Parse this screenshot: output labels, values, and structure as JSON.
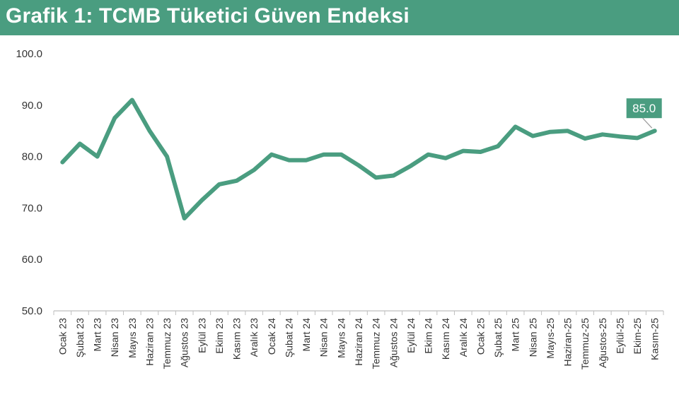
{
  "header": {
    "title": "Grafik 1: TCMB Tüketici Güven Endeksi"
  },
  "colors": {
    "accent": "#4a9d80",
    "line": "#4a9d80",
    "axis": "#bfbfbf"
  },
  "chart_data": {
    "type": "line",
    "title": "",
    "xlabel": "",
    "ylabel": "",
    "ylim": [
      50,
      100
    ],
    "yticks": [
      "100.0",
      "90.0",
      "80.0",
      "70.0",
      "60.0",
      "50.0"
    ],
    "grid": false,
    "categories": [
      "Ocak 23",
      "Şubat 23",
      "Mart 23",
      "Nisan 23",
      "Mayıs 23",
      "Haziran 23",
      "Temmuz 23",
      "Ağustos 23",
      "Eylül 23",
      "Ekim 23",
      "Kasım 23",
      "Aralık 23",
      "Ocak 24",
      "Şubat 24",
      "Mart 24",
      "Nisan 24",
      "Mayıs 24",
      "Haziran 24",
      "Temmuz 24",
      "Ağustos 24",
      "Eylül 24",
      "Ekim 24",
      "Kasım 24",
      "Aralık 24",
      "Ocak 25",
      "Şubat 25",
      "Mart 25",
      "Nisan 25",
      "Mayıs-25",
      "Haziran-25",
      "Temmuz-25",
      "Ağustos-25",
      "Eylül-25",
      "Ekim-25",
      "Kasım-25"
    ],
    "series": [
      {
        "values": [
          78.9,
          82.5,
          80.0,
          87.5,
          91.0,
          85.0,
          80.0,
          68.0,
          71.5,
          74.6,
          75.3,
          77.4,
          80.4,
          79.3,
          79.3,
          80.4,
          80.4,
          78.3,
          75.9,
          76.3,
          78.2,
          80.4,
          79.7,
          81.1,
          80.9,
          82.0,
          85.8,
          84.0,
          84.8,
          85.0,
          83.5,
          84.3,
          83.9,
          83.6,
          85.0
        ]
      }
    ],
    "annotations": [
      {
        "category": "Kasım-25",
        "label": "85.0"
      }
    ]
  }
}
